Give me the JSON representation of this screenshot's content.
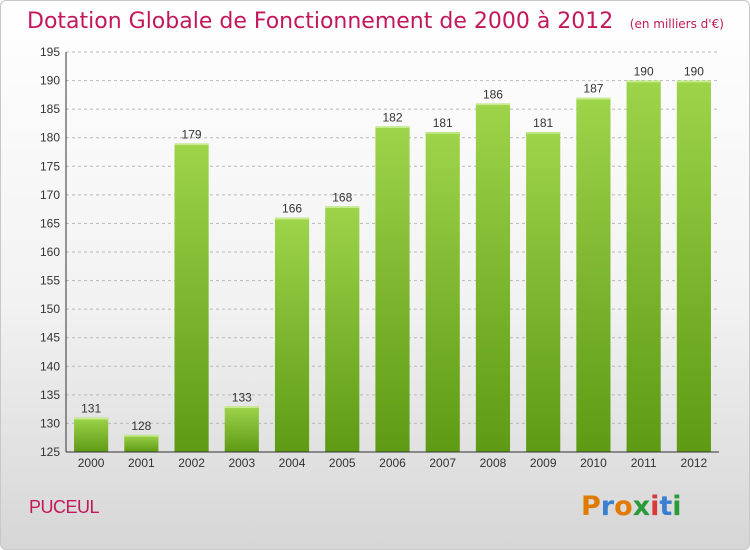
{
  "header": {
    "title": "Dotation Globale de Fonctionnement de 2000 à 2012",
    "subtitle": "(en milliers d'€)"
  },
  "footer": {
    "commune": "PUCEUL",
    "brand": "Proxiti"
  },
  "colors": {
    "title": "#c2185b",
    "bar_light": "#9dd44a",
    "bar_dark": "#5e9a14",
    "grid": "#b9b9b9"
  },
  "chart_data": {
    "type": "bar",
    "title": "Dotation Globale de Fonctionnement de 2000 à 2012",
    "subtitle": "(en milliers d'€)",
    "xlabel": "",
    "ylabel": "",
    "categories": [
      "2000",
      "2001",
      "2002",
      "2003",
      "2004",
      "2005",
      "2006",
      "2007",
      "2008",
      "2009",
      "2010",
      "2011",
      "2012"
    ],
    "values": [
      131,
      128,
      179,
      133,
      166,
      168,
      182,
      181,
      186,
      181,
      187,
      190,
      190
    ],
    "ylim": [
      125,
      195
    ],
    "yticks": [
      125,
      130,
      135,
      140,
      145,
      150,
      155,
      160,
      165,
      170,
      175,
      180,
      185,
      190,
      195
    ],
    "grid": true,
    "data_labels": true
  }
}
